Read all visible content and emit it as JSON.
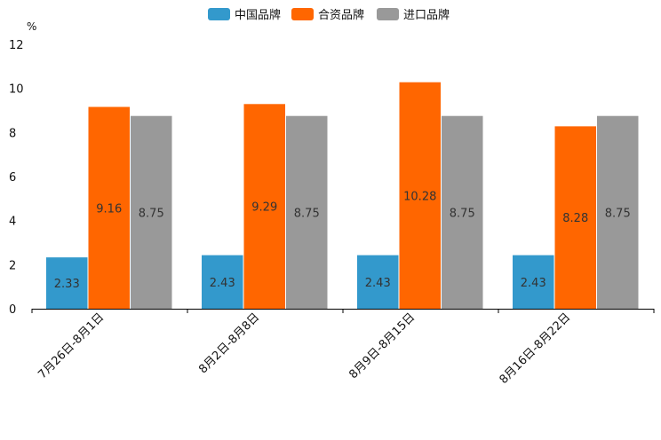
{
  "chart_data": {
    "type": "bar",
    "ylabel": "%",
    "ylim": [
      0,
      12
    ],
    "yticks": [
      0,
      2,
      4,
      6,
      8,
      10,
      12
    ],
    "categories": [
      "7月26日-8月1日",
      "8月2日-8月8日",
      "8月9日-8月15日",
      "8月16日-8月22日"
    ],
    "series": [
      {
        "name": "中国品牌",
        "color": "#3399cc",
        "values": [
          2.33,
          2.43,
          2.43,
          2.43
        ]
      },
      {
        "name": "合资品牌",
        "color": "#ff6600",
        "values": [
          9.16,
          9.29,
          10.28,
          8.28
        ]
      },
      {
        "name": "进口品牌",
        "color": "#999999",
        "values": [
          8.75,
          8.75,
          8.75,
          8.75
        ]
      }
    ],
    "legend": "top-center",
    "grid": false
  }
}
